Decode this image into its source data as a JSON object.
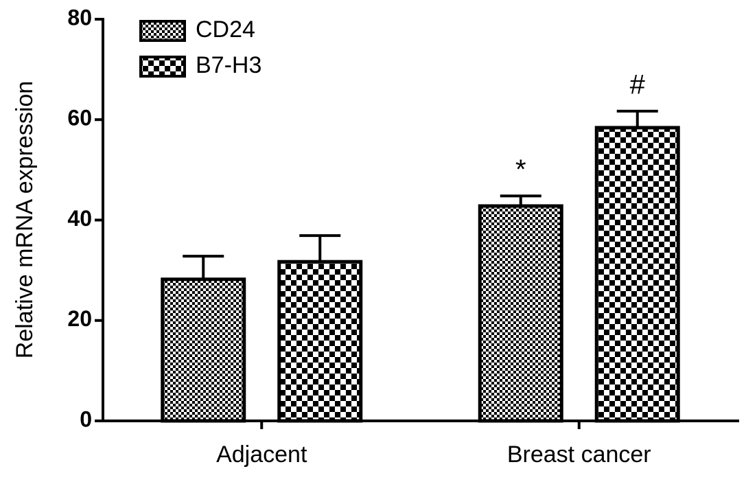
{
  "chart_data": {
    "type": "bar",
    "y_label": "Relative mRNA expression",
    "categories": [
      "Adjacent",
      "Breast cancer"
    ],
    "series": [
      {
        "name": "CD24",
        "color": "#000000",
        "pattern": "fine-checker",
        "values": [
          28.2,
          42.8
        ],
        "errors": [
          4.6,
          2.0
        ],
        "annotations": [
          null,
          "*"
        ]
      },
      {
        "name": "B7-H3",
        "color": "#000000",
        "pattern": "coarse-checker",
        "values": [
          31.7,
          58.4
        ],
        "errors": [
          5.2,
          3.3
        ],
        "annotations": [
          null,
          "#"
        ]
      }
    ],
    "ylim": [
      0,
      80
    ],
    "yticks": [
      0,
      20,
      40,
      60,
      80
    ],
    "grid": false,
    "legend": "upper left"
  }
}
